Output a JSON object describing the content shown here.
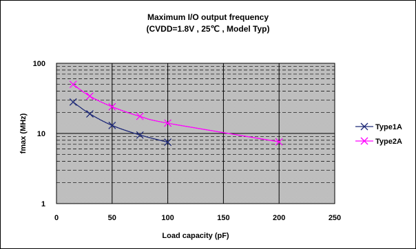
{
  "chart_data": {
    "type": "line",
    "title": "Maximum I/O output frequency",
    "subtitle": "(CVDD=1.8V , 25℃ , Model Typ)",
    "xlabel": "Load capacity (pF)",
    "ylabel": "fmax (MHz)",
    "xlim": [
      0,
      250
    ],
    "ylim": [
      1,
      100
    ],
    "y_scale": "log",
    "x_ticks": [
      0,
      50,
      100,
      150,
      200,
      250
    ],
    "y_ticks": [
      1,
      10,
      100
    ],
    "grid": true,
    "legend_position": "right",
    "series": [
      {
        "name": "Type1A",
        "color": "#1f2a78",
        "marker": "x",
        "points": [
          [
            15,
            28
          ],
          [
            30,
            19
          ],
          [
            50,
            13
          ],
          [
            75,
            9.5
          ],
          [
            100,
            7.5
          ]
        ]
      },
      {
        "name": "Type2A",
        "color": "#ff00ff",
        "marker": "x",
        "points": [
          [
            15,
            50
          ],
          [
            30,
            34
          ],
          [
            50,
            24
          ],
          [
            75,
            17.5
          ],
          [
            100,
            14
          ],
          [
            200,
            7.6
          ]
        ]
      }
    ]
  }
}
